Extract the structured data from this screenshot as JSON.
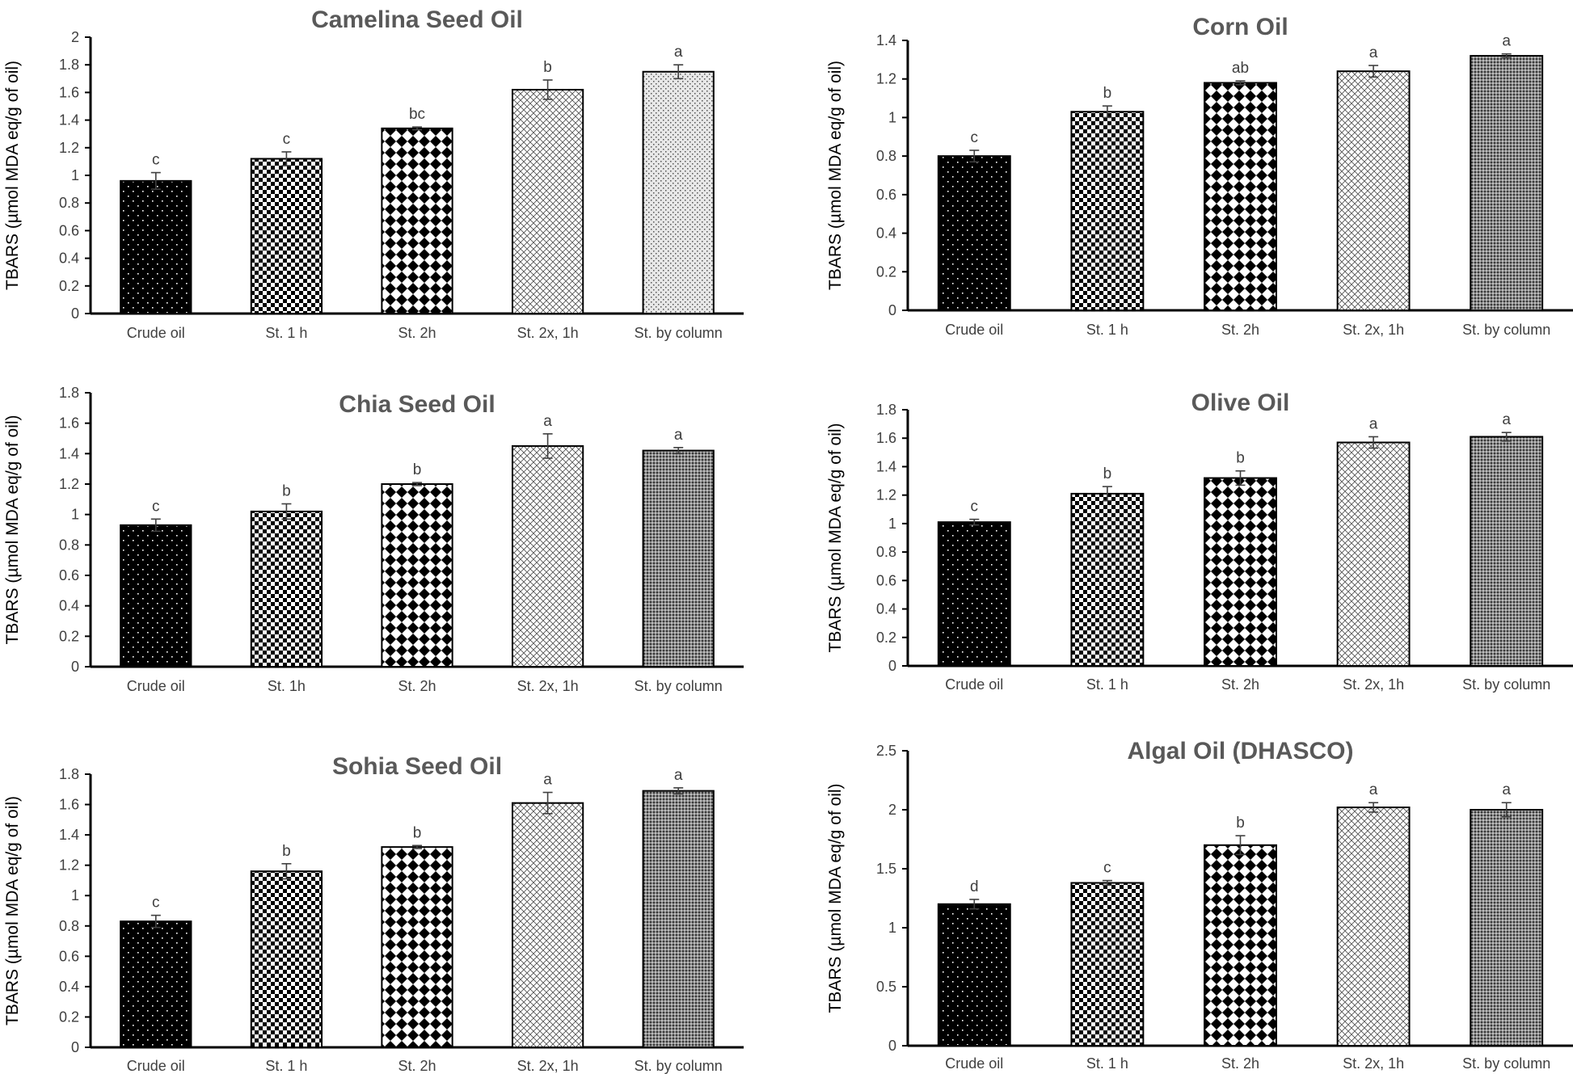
{
  "chart_data": [
    {
      "type": "bar",
      "title": "Camelina Seed Oil",
      "ylabel": "TBARS (µmol MDA eq/g of oil)",
      "xlabel": "",
      "categories": [
        "Crude oil",
        "St. 1 h",
        "St. 2h",
        "St. 2x, 1h",
        "St. by column"
      ],
      "values": [
        0.96,
        1.12,
        1.34,
        1.62,
        1.75
      ],
      "errors": [
        0.06,
        0.05,
        0.01,
        0.07,
        0.05
      ],
      "significance": [
        "c",
        "c",
        "bc",
        "b",
        "a"
      ],
      "ylim": [
        0,
        2
      ],
      "yticks": [
        "0",
        "0.2",
        "0.4",
        "0.6",
        "0.8",
        "1",
        "1.2",
        "1.4",
        "1.6",
        "1.8",
        "2"
      ],
      "ytick_values": [
        0,
        0.2,
        0.4,
        0.6,
        0.8,
        1,
        1.2,
        1.4,
        1.6,
        1.8,
        2
      ],
      "patterns": [
        "dots-dark",
        "checker",
        "diamonds",
        "crosshatch",
        "fine-dots"
      ],
      "grid": false
    },
    {
      "type": "bar",
      "title": "Corn Oil",
      "ylabel": "TBARS (µmol MDA eq/g of oil)",
      "xlabel": "",
      "categories": [
        "Crude oil",
        "St. 1 h",
        "St. 2h",
        "St. 2x, 1h",
        "St. by column"
      ],
      "values": [
        0.8,
        1.03,
        1.18,
        1.24,
        1.32
      ],
      "errors": [
        0.03,
        0.03,
        0.01,
        0.03,
        0.01
      ],
      "significance": [
        "c",
        "b",
        "ab",
        "a",
        "a"
      ],
      "ylim": [
        0,
        1.4
      ],
      "yticks": [
        "0",
        "0.2",
        "0.4",
        "0.6",
        "0.8",
        "1",
        "1.2",
        "1.4"
      ],
      "ytick_values": [
        0,
        0.2,
        0.4,
        0.6,
        0.8,
        1,
        1.2,
        1.4
      ],
      "patterns": [
        "dots-dark",
        "checker",
        "diamonds",
        "crosshatch",
        "dense-grey"
      ],
      "grid": false
    },
    {
      "type": "bar",
      "title": "Chia Seed Oil",
      "ylabel": "TBARS (µmol MDA eq/g of oil)",
      "xlabel": "",
      "categories": [
        "Crude oil",
        "St. 1h",
        "St. 2h",
        "St. 2x, 1h",
        "St. by column"
      ],
      "values": [
        0.93,
        1.02,
        1.2,
        1.45,
        1.42
      ],
      "errors": [
        0.04,
        0.05,
        0.01,
        0.08,
        0.02
      ],
      "significance": [
        "c",
        "b",
        "b",
        "a",
        "a"
      ],
      "ylim": [
        0,
        1.8
      ],
      "yticks": [
        "0",
        "0.2",
        "0.4",
        "0.6",
        "0.8",
        "1",
        "1.2",
        "1.4",
        "1.6",
        "1.8"
      ],
      "ytick_values": [
        0,
        0.2,
        0.4,
        0.6,
        0.8,
        1,
        1.2,
        1.4,
        1.6,
        1.8
      ],
      "patterns": [
        "dots-dark",
        "checker",
        "diamonds",
        "crosshatch",
        "dense-grey"
      ],
      "grid": false
    },
    {
      "type": "bar",
      "title": "Olive Oil",
      "ylabel": "TBARS (µmol MDA eq/g of oil)",
      "xlabel": "",
      "categories": [
        "Crude oil",
        "St. 1 h",
        "St. 2h",
        "St. 2x, 1h",
        "St. by column"
      ],
      "values": [
        1.01,
        1.21,
        1.32,
        1.57,
        1.61
      ],
      "errors": [
        0.02,
        0.05,
        0.05,
        0.04,
        0.03
      ],
      "significance": [
        "c",
        "b",
        "b",
        "a",
        "a"
      ],
      "ylim": [
        0,
        1.8
      ],
      "yticks": [
        "0",
        "0.2",
        "0.4",
        "0.6",
        "0.8",
        "1",
        "1.2",
        "1.4",
        "1.6",
        "1.8"
      ],
      "ytick_values": [
        0,
        0.2,
        0.4,
        0.6,
        0.8,
        1,
        1.2,
        1.4,
        1.6,
        1.8
      ],
      "patterns": [
        "dots-dark",
        "checker",
        "diamonds",
        "crosshatch",
        "dense-grey"
      ],
      "grid": false
    },
    {
      "type": "bar",
      "title": "Sohia Seed Oil",
      "ylabel": "TBARS (µmol MDA eq/g of oil)",
      "xlabel": "",
      "categories": [
        "Crude oil",
        "St. 1 h",
        "St. 2h",
        "St. 2x, 1h",
        "St. by column"
      ],
      "values": [
        0.83,
        1.16,
        1.32,
        1.61,
        1.69
      ],
      "errors": [
        0.04,
        0.05,
        0.01,
        0.07,
        0.02
      ],
      "significance": [
        "c",
        "b",
        "b",
        "a",
        "a"
      ],
      "ylim": [
        0,
        1.8
      ],
      "yticks": [
        "0",
        "0.2",
        "0.4",
        "0.6",
        "0.8",
        "1",
        "1.2",
        "1.4",
        "1.6",
        "1.8"
      ],
      "ytick_values": [
        0,
        0.2,
        0.4,
        0.6,
        0.8,
        1,
        1.2,
        1.4,
        1.6,
        1.8
      ],
      "patterns": [
        "dots-dark",
        "checker",
        "diamonds",
        "crosshatch",
        "dense-grey"
      ],
      "grid": false
    },
    {
      "type": "bar",
      "title": "Algal Oil (DHASCO)",
      "ylabel": "TBARS (µmol MDA eq/g of oil)",
      "xlabel": "",
      "categories": [
        "Crude oil",
        "St. 1 h",
        "St. 2h",
        "St. 2x, 1h",
        "St. by column"
      ],
      "values": [
        1.2,
        1.38,
        1.7,
        2.02,
        2.0
      ],
      "errors": [
        0.04,
        0.02,
        0.08,
        0.04,
        0.06
      ],
      "significance": [
        "d",
        "c",
        "b",
        "a",
        "a"
      ],
      "ylim": [
        0,
        2.5
      ],
      "yticks": [
        "0",
        "0.5",
        "1",
        "1.5",
        "2",
        "2.5"
      ],
      "ytick_values": [
        0,
        0.5,
        1,
        1.5,
        2,
        2.5
      ],
      "patterns": [
        "dots-dark",
        "checker",
        "diamonds",
        "crosshatch",
        "dense-grey"
      ],
      "grid": false
    }
  ]
}
